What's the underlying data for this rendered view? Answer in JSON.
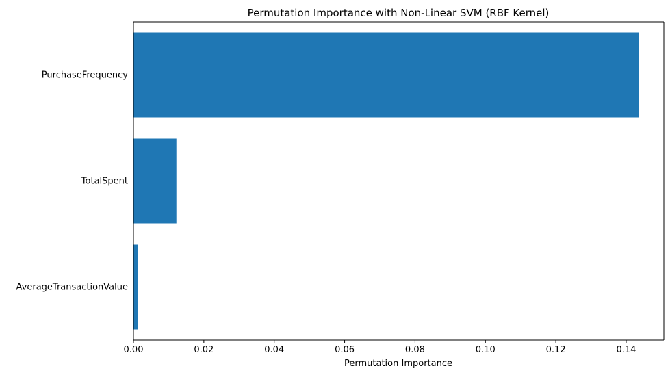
{
  "chart_data": {
    "type": "bar",
    "orientation": "horizontal",
    "title": "Permutation Importance with Non-Linear SVM (RBF Kernel)",
    "xlabel": "Permutation Importance",
    "ylabel": "",
    "categories": [
      "PurchaseFrequency",
      "TotalSpent",
      "AverageTransactionValue"
    ],
    "values": [
      0.1437,
      0.0122,
      0.0012
    ],
    "xlim": [
      0,
      0.1507
    ],
    "xticks": [
      0.0,
      0.02,
      0.04,
      0.06,
      0.08,
      0.1,
      0.12,
      0.14
    ],
    "xtick_labels": [
      "0.00",
      "0.02",
      "0.04",
      "0.06",
      "0.08",
      "0.10",
      "0.12",
      "0.14"
    ],
    "grid": false,
    "bar_color": "#1f77b4"
  }
}
